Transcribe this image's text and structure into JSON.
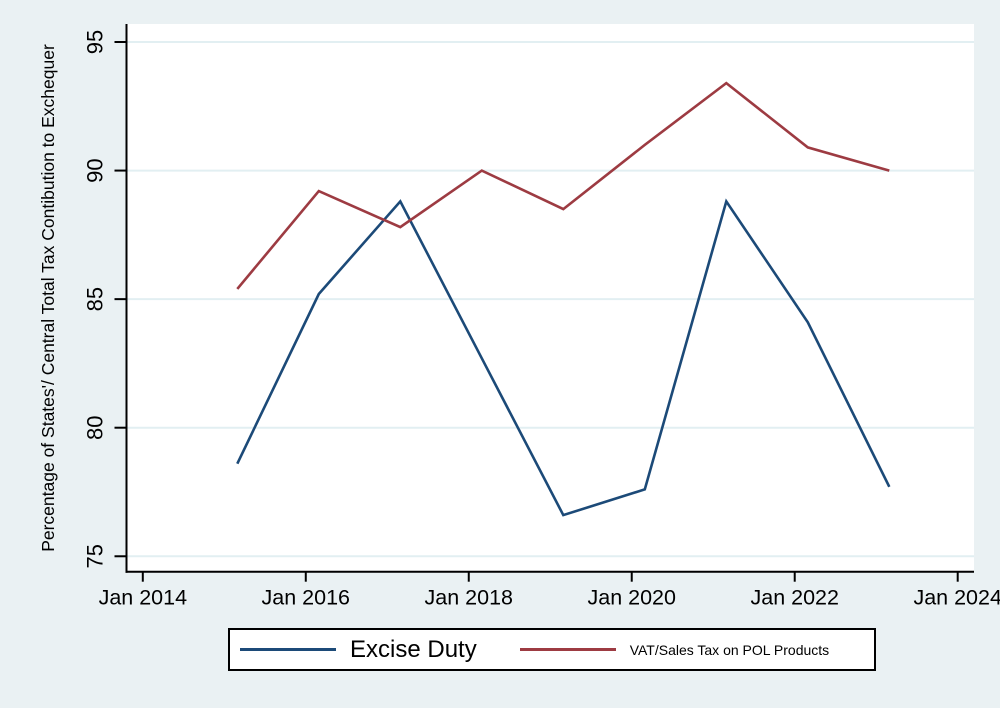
{
  "chart_data": {
    "type": "line",
    "title": "",
    "xlabel": "",
    "ylabel": "Percentage of States'/ Central Total Tax Contibution to Exchequer",
    "x": [
      2015.16,
      2016.16,
      2017.16,
      2018.16,
      2019.16,
      2020.16,
      2021.16,
      2022.16,
      2023.16
    ],
    "series": [
      {
        "name": "Excise Duty",
        "color": "#1c4a78",
        "values": [
          78.6,
          85.2,
          88.8,
          82.7,
          76.6,
          77.6,
          88.8,
          84.1,
          77.7
        ]
      },
      {
        "name": "VAT/Sales Tax on POL Products",
        "color": "#9d3b42",
        "values": [
          85.4,
          89.2,
          87.8,
          90.0,
          88.5,
          91.0,
          93.4,
          90.9,
          90.0
        ]
      }
    ],
    "xlim": [
      2013.8,
      2024.2
    ],
    "ylim": [
      74.4,
      95.7
    ],
    "xticks": [
      {
        "value": 2014,
        "label": "Jan 2014"
      },
      {
        "value": 2016,
        "label": "Jan 2016"
      },
      {
        "value": 2018,
        "label": "Jan 2018"
      },
      {
        "value": 2020,
        "label": "Jan 2020"
      },
      {
        "value": 2022,
        "label": "Jan 2022"
      },
      {
        "value": 2024,
        "label": "Jan 2024"
      }
    ],
    "yticks": [
      75,
      80,
      85,
      90,
      95
    ],
    "grid": "horizontal-only",
    "legend_position": "bottom"
  },
  "legend": {
    "items": [
      {
        "label": "Excise Duty"
      },
      {
        "label": "VAT/Sales Tax on POL Products"
      }
    ]
  },
  "colors": {
    "background": "#eaf1f3",
    "plot_background": "#ffffff",
    "gridline": "#e2eff2",
    "axis": "#000000",
    "excise_line": "#1c4a78",
    "vat_line": "#9d3b42"
  }
}
